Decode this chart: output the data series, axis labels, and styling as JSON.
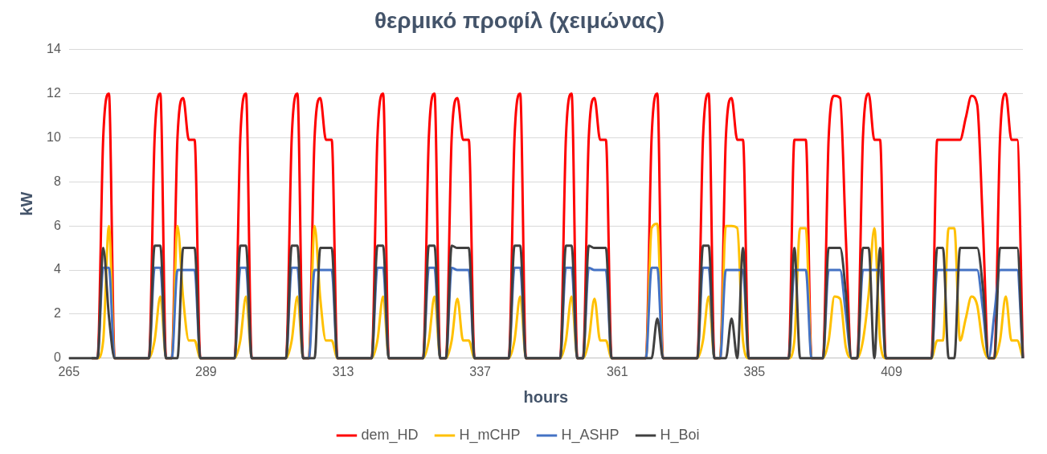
{
  "chart_data": {
    "type": "line",
    "title": "θερμικό προφίλ (χειμώνας)",
    "xlabel": "hours",
    "ylabel": "kW",
    "x": [
      265,
      266,
      267,
      268,
      269,
      270,
      271,
      272,
      273,
      274,
      275,
      276,
      277,
      278,
      279,
      280,
      281,
      282,
      283,
      284,
      285,
      286,
      287,
      288,
      289,
      290,
      291,
      292,
      293,
      294,
      295,
      296,
      297,
      298,
      299,
      300,
      301,
      302,
      303,
      304,
      305,
      306,
      307,
      308,
      309,
      310,
      311,
      312,
      313,
      314,
      315,
      316,
      317,
      318,
      319,
      320,
      321,
      322,
      323,
      324,
      325,
      326,
      327,
      328,
      329,
      330,
      331,
      332,
      333,
      334,
      335,
      336,
      337,
      338,
      339,
      340,
      341,
      342,
      343,
      344,
      345,
      346,
      347,
      348,
      349,
      350,
      351,
      352,
      353,
      354,
      355,
      356,
      357,
      358,
      359,
      360,
      361,
      362,
      363,
      364,
      365,
      366,
      367,
      368,
      369,
      370,
      371,
      372,
      373,
      374,
      375,
      376,
      377,
      378,
      379,
      380,
      381,
      382,
      383,
      384,
      385,
      386,
      387,
      388,
      389,
      390,
      391,
      392,
      393,
      394,
      395,
      396,
      397,
      398,
      399,
      400,
      401,
      402,
      403,
      404,
      405,
      406,
      407,
      408,
      409,
      410,
      411,
      412,
      413,
      414,
      415,
      416,
      417,
      418,
      419,
      420,
      421,
      422,
      423,
      424,
      425,
      426,
      427,
      428,
      429,
      430,
      431,
      432
    ],
    "series": [
      {
        "name": "dem_HD",
        "color": "#ff0000",
        "values": [
          null,
          null,
          null,
          null,
          0,
          0,
          10,
          12,
          0,
          0,
          0,
          0,
          0,
          0,
          0,
          10,
          12,
          0,
          0,
          10,
          11.8,
          9.9,
          9.9,
          0,
          0,
          0,
          0,
          0,
          0,
          0,
          10,
          12,
          0,
          0,
          0,
          0,
          0,
          0,
          0,
          10,
          12,
          0,
          0,
          10,
          11.8,
          9.9,
          9.9,
          0,
          0,
          0,
          0,
          0,
          0,
          0,
          10,
          12,
          0,
          0,
          0,
          0,
          0,
          0,
          0,
          10,
          12,
          0,
          0,
          10,
          11.8,
          9.9,
          9.9,
          0,
          0,
          0,
          0,
          0,
          0,
          0,
          10,
          12,
          0,
          0,
          0,
          0,
          0,
          0,
          0,
          10,
          12,
          0,
          0,
          10,
          11.8,
          9.9,
          9.9,
          0,
          0,
          0,
          0,
          0,
          0,
          0,
          10,
          12,
          0,
          0,
          0,
          0,
          0,
          0,
          0,
          10,
          12,
          0,
          0,
          10,
          11.8,
          9.9,
          9.9,
          0,
          0,
          0,
          0,
          0,
          0,
          0,
          0,
          9.9,
          9.9,
          9.9,
          0,
          0,
          0,
          10,
          11.9,
          11.8,
          5.5,
          0,
          0,
          10,
          12,
          9.9,
          9.9,
          0,
          0,
          0,
          0,
          0,
          0,
          0,
          0,
          0,
          9.9,
          9.9,
          9.9,
          9.9,
          9.9,
          10.9,
          11.9,
          11.5,
          6,
          0,
          0,
          10,
          12,
          9.9,
          9.9,
          0
        ]
      },
      {
        "name": "H_mCHP",
        "color": "#ffc000",
        "values": [
          null,
          null,
          null,
          null,
          0,
          0,
          0.8,
          6,
          0,
          0,
          0,
          0,
          0,
          0,
          0,
          0.8,
          2.8,
          0,
          0,
          6,
          2.7,
          0.8,
          0.8,
          0,
          0,
          0,
          0,
          0,
          0,
          0,
          0.8,
          2.8,
          0,
          0,
          0,
          0,
          0,
          0,
          0,
          0.8,
          2.8,
          0,
          0,
          6,
          2.7,
          0.8,
          0.8,
          0,
          0,
          0,
          0,
          0,
          0,
          0,
          0.8,
          2.8,
          0,
          0,
          0,
          0,
          0,
          0,
          0,
          0.8,
          2.8,
          0,
          0,
          0.8,
          2.7,
          0.8,
          0.8,
          0,
          0,
          0,
          0,
          0,
          0,
          0,
          0.8,
          2.8,
          0,
          0,
          0,
          0,
          0,
          0,
          0,
          0.8,
          2.8,
          0,
          0,
          0.8,
          2.7,
          0.8,
          0.8,
          0,
          0,
          0,
          0,
          0,
          0,
          0,
          5.9,
          6.1,
          0,
          0,
          0,
          0,
          0,
          0,
          0,
          0.8,
          2.8,
          0,
          0,
          6,
          6,
          5.9,
          0.8,
          0,
          0,
          0,
          0,
          0,
          0,
          0,
          0,
          0.8,
          5.9,
          5.9,
          0,
          0,
          0,
          0.8,
          2.8,
          2.7,
          0.5,
          0,
          0,
          0.8,
          2.9,
          5.9,
          0.8,
          0,
          0,
          0,
          0,
          0,
          0,
          0,
          0,
          0,
          0.8,
          0.8,
          5.9,
          5.9,
          0.8,
          1.8,
          2.8,
          2.4,
          0.6,
          0,
          0,
          0.8,
          2.8,
          0.8,
          0.8,
          0
        ]
      },
      {
        "name": "H_ASHP",
        "color": "#4472c4",
        "values": [
          null,
          null,
          null,
          null,
          0,
          0,
          4.1,
          4.1,
          0,
          0,
          0,
          0,
          0,
          0,
          0,
          4.1,
          4.1,
          0,
          0,
          4,
          4,
          4,
          4,
          0,
          0,
          0,
          0,
          0,
          0,
          0,
          4.1,
          4.1,
          0,
          0,
          0,
          0,
          0,
          0,
          0,
          4.1,
          4.1,
          0,
          0,
          4,
          4,
          4,
          4,
          0,
          0,
          0,
          0,
          0,
          0,
          0,
          4.1,
          4.1,
          0,
          0,
          0,
          0,
          0,
          0,
          0,
          4.1,
          4.1,
          0,
          0,
          4.1,
          4,
          4,
          4,
          0,
          0,
          0,
          0,
          0,
          0,
          0,
          4.1,
          4.1,
          0,
          0,
          0,
          0,
          0,
          0,
          0,
          4.1,
          4.1,
          0,
          0,
          4.1,
          4,
          4,
          4,
          0,
          0,
          0,
          0,
          0,
          0,
          0,
          4.1,
          4.1,
          0,
          0,
          0,
          0,
          0,
          0,
          0,
          4.1,
          4.1,
          0,
          0,
          4,
          4,
          4,
          4,
          0,
          0,
          0,
          0,
          0,
          0,
          0,
          0,
          4,
          4,
          4,
          0,
          0,
          0,
          4,
          4,
          4,
          2,
          0,
          0,
          4,
          4,
          4,
          4,
          0,
          0,
          0,
          0,
          0,
          0,
          0,
          0,
          0,
          4,
          4,
          4,
          4,
          4,
          4,
          4,
          4,
          2.2,
          0,
          2,
          4,
          4,
          4,
          4,
          0
        ]
      },
      {
        "name": "H_Boi",
        "color": "#404040",
        "values": [
          0,
          0,
          0,
          0,
          0,
          0,
          5,
          1.9,
          0,
          0,
          0,
          0,
          0,
          0,
          0,
          5.1,
          5.1,
          0,
          0,
          0,
          5,
          5,
          5,
          0,
          0,
          0,
          0,
          0,
          0,
          0,
          5.1,
          5.1,
          0,
          0,
          0,
          0,
          0,
          0,
          0,
          5.1,
          5.1,
          0,
          0,
          0,
          5,
          5,
          5,
          0,
          0,
          0,
          0,
          0,
          0,
          0,
          5.1,
          5.1,
          0,
          0,
          0,
          0,
          0,
          0,
          0,
          5.1,
          5.1,
          0,
          0,
          5.1,
          5,
          5,
          5,
          0,
          0,
          0,
          0,
          0,
          0,
          0,
          5.1,
          5.1,
          0,
          0,
          0,
          0,
          0,
          0,
          0,
          5.1,
          5.1,
          0,
          0,
          5.1,
          5,
          5,
          5,
          0,
          0,
          0,
          0,
          0,
          0,
          0,
          0,
          1.8,
          0,
          0,
          0,
          0,
          0,
          0,
          0,
          5.1,
          5.1,
          0,
          0,
          0,
          1.8,
          0,
          5,
          0,
          0,
          0,
          0,
          0,
          0,
          0,
          0,
          5,
          0,
          0,
          0,
          0,
          0,
          5,
          5,
          5,
          3,
          0,
          0,
          5,
          5,
          0,
          5,
          0,
          0,
          0,
          0,
          0,
          0,
          0,
          0,
          0,
          5,
          5,
          0,
          0,
          5,
          5,
          5,
          5,
          3.2,
          0,
          0,
          5,
          5,
          5,
          5,
          0
        ]
      }
    ],
    "xlim": [
      265,
      432
    ],
    "xticks": [
      265,
      289,
      313,
      337,
      361,
      385,
      409
    ],
    "ylim": [
      0,
      14
    ],
    "yticks": [
      0,
      2,
      4,
      6,
      8,
      10,
      12,
      14
    ],
    "grid": "y",
    "legend": "bottom"
  }
}
